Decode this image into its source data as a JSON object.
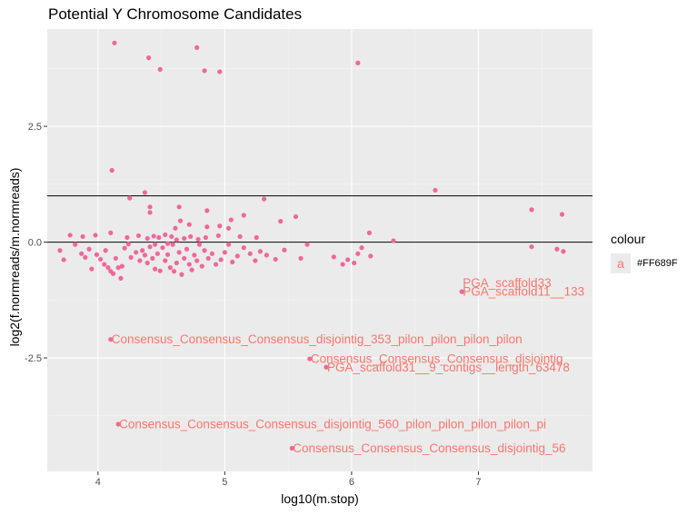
{
  "chart_data": {
    "type": "scatter",
    "title": "Potential Y Chromosome Candidates",
    "xlabel": "log10(m.stop)",
    "ylabel": "log2(f.normreads/m.normreads)",
    "xlim": [
      3.6,
      7.9
    ],
    "ylim": [
      -4.95,
      4.6
    ],
    "x_ticks": [
      4,
      5,
      6,
      7
    ],
    "x_tick_labels": [
      "4",
      "5",
      "6",
      "7"
    ],
    "y_ticks": [
      -2.5,
      0,
      2.5
    ],
    "y_tick_labels": [
      "-2.5",
      "0.0",
      "2.5"
    ],
    "grid": true,
    "point_color": "#F0679A",
    "label_color": "#F8766D",
    "hlines": [
      1,
      0
    ],
    "legend": {
      "title": "colour",
      "key_glyph": "a",
      "label": "#FF689F",
      "position": "right"
    },
    "points": [
      {
        "x": 4.13,
        "y": 4.3
      },
      {
        "x": 4.78,
        "y": 4.2
      },
      {
        "x": 4.4,
        "y": 3.98
      },
      {
        "x": 4.49,
        "y": 3.73
      },
      {
        "x": 4.84,
        "y": 3.7
      },
      {
        "x": 4.96,
        "y": 3.68
      },
      {
        "x": 6.05,
        "y": 3.87
      },
      {
        "x": 4.11,
        "y": 1.55
      },
      {
        "x": 6.66,
        "y": 1.12
      },
      {
        "x": 4.37,
        "y": 1.07
      },
      {
        "x": 4.25,
        "y": 0.95
      },
      {
        "x": 5.31,
        "y": 0.93
      },
      {
        "x": 7.42,
        "y": 0.7
      },
      {
        "x": 7.66,
        "y": 0.6
      },
      {
        "x": 4.41,
        "y": 0.76
      },
      {
        "x": 4.41,
        "y": 0.64
      },
      {
        "x": 4.64,
        "y": 0.76
      },
      {
        "x": 4.86,
        "y": 0.68
      },
      {
        "x": 5.15,
        "y": 0.58
      },
      {
        "x": 5.56,
        "y": 0.55
      },
      {
        "x": 5.05,
        "y": 0.48
      },
      {
        "x": 5.44,
        "y": 0.45
      },
      {
        "x": 4.65,
        "y": 0.46
      },
      {
        "x": 4.72,
        "y": 0.38
      },
      {
        "x": 4.61,
        "y": 0.3
      },
      {
        "x": 4.86,
        "y": 0.33
      },
      {
        "x": 4.96,
        "y": 0.35
      },
      {
        "x": 5.03,
        "y": 0.3
      },
      {
        "x": 6.14,
        "y": 0.2
      },
      {
        "x": 3.78,
        "y": 0.15
      },
      {
        "x": 3.88,
        "y": 0.12
      },
      {
        "x": 3.98,
        "y": 0.15
      },
      {
        "x": 4.1,
        "y": 0.2
      },
      {
        "x": 4.23,
        "y": 0.1
      },
      {
        "x": 4.32,
        "y": 0.14
      },
      {
        "x": 4.39,
        "y": 0.08
      },
      {
        "x": 4.44,
        "y": 0.13
      },
      {
        "x": 4.48,
        "y": 0.1
      },
      {
        "x": 4.53,
        "y": 0.16
      },
      {
        "x": 4.58,
        "y": 0.12
      },
      {
        "x": 4.62,
        "y": 0.05
      },
      {
        "x": 4.68,
        "y": 0.08
      },
      {
        "x": 4.73,
        "y": 0.12
      },
      {
        "x": 4.79,
        "y": 0.06
      },
      {
        "x": 4.85,
        "y": 0.1
      },
      {
        "x": 4.95,
        "y": 0.14
      },
      {
        "x": 5.12,
        "y": 0.12
      },
      {
        "x": 5.25,
        "y": 0.1
      },
      {
        "x": 6.33,
        "y": 0.03
      },
      {
        "x": 3.7,
        "y": -0.18
      },
      {
        "x": 3.73,
        "y": -0.38
      },
      {
        "x": 3.82,
        "y": -0.05
      },
      {
        "x": 3.87,
        "y": -0.25
      },
      {
        "x": 3.9,
        "y": -0.33
      },
      {
        "x": 3.93,
        "y": -0.15
      },
      {
        "x": 3.95,
        "y": -0.58
      },
      {
        "x": 3.99,
        "y": -0.27
      },
      {
        "x": 4.02,
        "y": -0.37
      },
      {
        "x": 4.05,
        "y": -0.48
      },
      {
        "x": 4.06,
        "y": -0.18
      },
      {
        "x": 4.08,
        "y": -0.55
      },
      {
        "x": 4.1,
        "y": -0.63
      },
      {
        "x": 4.12,
        "y": -0.68
      },
      {
        "x": 4.14,
        "y": -0.35
      },
      {
        "x": 4.16,
        "y": -0.55
      },
      {
        "x": 4.18,
        "y": -0.78
      },
      {
        "x": 4.19,
        "y": -0.52
      },
      {
        "x": 4.21,
        "y": -0.13
      },
      {
        "x": 4.24,
        "y": -0.04
      },
      {
        "x": 4.26,
        "y": -0.33
      },
      {
        "x": 4.3,
        "y": -0.22
      },
      {
        "x": 4.33,
        "y": -0.4
      },
      {
        "x": 4.35,
        "y": -0.18
      },
      {
        "x": 4.37,
        "y": -0.28
      },
      {
        "x": 4.39,
        "y": -0.45
      },
      {
        "x": 4.41,
        "y": -0.1
      },
      {
        "x": 4.43,
        "y": -0.35
      },
      {
        "x": 4.45,
        "y": -0.58
      },
      {
        "x": 4.47,
        "y": -0.25
      },
      {
        "x": 4.49,
        "y": -0.62
      },
      {
        "x": 4.51,
        "y": -0.12
      },
      {
        "x": 4.53,
        "y": -0.4
      },
      {
        "x": 4.55,
        "y": -0.27
      },
      {
        "x": 4.57,
        "y": -0.55
      },
      {
        "x": 4.59,
        "y": -0.05
      },
      {
        "x": 4.6,
        "y": -0.63
      },
      {
        "x": 4.62,
        "y": -0.45
      },
      {
        "x": 4.64,
        "y": -0.22
      },
      {
        "x": 4.66,
        "y": -0.7
      },
      {
        "x": 4.68,
        "y": -0.35
      },
      {
        "x": 4.7,
        "y": -0.15
      },
      {
        "x": 4.72,
        "y": -0.48
      },
      {
        "x": 4.74,
        "y": -0.6
      },
      {
        "x": 4.76,
        "y": -0.28
      },
      {
        "x": 4.78,
        "y": -0.4
      },
      {
        "x": 4.8,
        "y": -0.05
      },
      {
        "x": 4.82,
        "y": -0.52
      },
      {
        "x": 4.84,
        "y": -0.18
      },
      {
        "x": 4.87,
        "y": -0.35
      },
      {
        "x": 4.9,
        "y": -0.25
      },
      {
        "x": 4.93,
        "y": -0.48
      },
      {
        "x": 4.97,
        "y": -0.38
      },
      {
        "x": 5.0,
        "y": -0.22
      },
      {
        "x": 5.03,
        "y": -0.05
      },
      {
        "x": 5.06,
        "y": -0.43
      },
      {
        "x": 5.1,
        "y": -0.3
      },
      {
        "x": 5.15,
        "y": -0.12
      },
      {
        "x": 5.2,
        "y": -0.25
      },
      {
        "x": 5.24,
        "y": -0.4
      },
      {
        "x": 5.28,
        "y": -0.2
      },
      {
        "x": 5.33,
        "y": -0.28
      },
      {
        "x": 5.4,
        "y": -0.37
      },
      {
        "x": 5.47,
        "y": -0.17
      },
      {
        "x": 5.6,
        "y": -0.35
      },
      {
        "x": 5.65,
        "y": -0.05
      },
      {
        "x": 5.86,
        "y": -0.32
      },
      {
        "x": 5.93,
        "y": -0.48
      },
      {
        "x": 5.97,
        "y": -0.38
      },
      {
        "x": 6.05,
        "y": -0.25
      },
      {
        "x": 6.15,
        "y": -0.3
      },
      {
        "x": 6.02,
        "y": -0.45
      },
      {
        "x": 6.08,
        "y": -0.12
      },
      {
        "x": 7.42,
        "y": -0.1
      },
      {
        "x": 7.62,
        "y": -0.15
      },
      {
        "x": 7.67,
        "y": -0.2
      },
      {
        "x": 4.55,
        "y": -0.03
      },
      {
        "x": 4.45,
        "y": -0.05
      },
      {
        "x": 6.87,
        "y": -1.07,
        "label": "PGA_scaffold11__133"
      },
      {
        "x": 6.87,
        "y": -1.07,
        "label": "PGA_scaffold33",
        "label_dx": 0.0,
        "label_dy": 0.19
      },
      {
        "x": 4.1,
        "y": -2.1,
        "label": "Consensus_Consensus_Consensus_disjointig_353_pilon_pilon_pilon_pilon"
      },
      {
        "x": 5.67,
        "y": -2.52,
        "label": "Consensus_Consensus_Consensus_disjointig"
      },
      {
        "x": 5.8,
        "y": -2.7,
        "label": "PGA_scaffold31__9_contigs__length_63478"
      },
      {
        "x": 4.16,
        "y": -3.93,
        "label": "Consensus_Consensus_Consensus_disjointig_560_pilon_pilon_pilon_pilon_pi"
      },
      {
        "x": 5.53,
        "y": -4.45,
        "label": "Consensus_Consensus_Consensus_disjointig_56"
      }
    ]
  }
}
